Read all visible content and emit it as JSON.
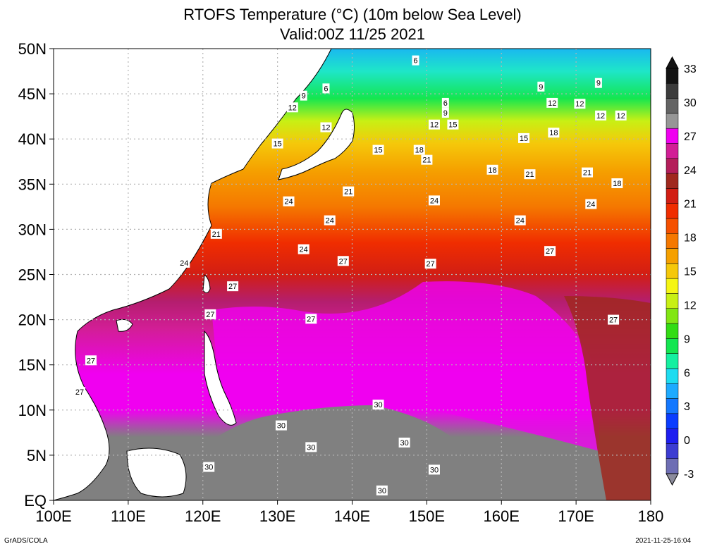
{
  "title": "RTOFS Temperature (°C) (10m below Sea Level)",
  "subtitle": "Valid:00Z 11/25 2021",
  "axes": {
    "lat_labels": [
      "EQ",
      "5N",
      "10N",
      "15N",
      "20N",
      "25N",
      "30N",
      "35N",
      "40N",
      "45N",
      "50N"
    ],
    "lon_labels": [
      "100E",
      "110E",
      "120E",
      "130E",
      "140E",
      "150E",
      "160E",
      "170E",
      "180"
    ],
    "lat_range": [
      0,
      50
    ],
    "lon_range": [
      100,
      180
    ],
    "grid": true
  },
  "colorbar": {
    "labels": [
      "-3",
      "0",
      "3",
      "6",
      "9",
      "12",
      "15",
      "18",
      "21",
      "24",
      "27",
      "30",
      "33"
    ],
    "colors": [
      "#6e6eb4",
      "#3c3cd2",
      "#1e1ef0",
      "#0a3cff",
      "#1478ff",
      "#1eaaff",
      "#1edcf0",
      "#14f0a0",
      "#14e650",
      "#32dc14",
      "#82e614",
      "#c8f014",
      "#f5f514",
      "#f5c80a",
      "#f5a000",
      "#f57800",
      "#f55000",
      "#f02d00",
      "#d21e14",
      "#a0281e",
      "#b41e5a",
      "#d21e96",
      "#f000f0",
      "#969696",
      "#646464",
      "#3c3c3c",
      "#141414"
    ]
  },
  "contour_labels": [
    {
      "text": "6",
      "lon": 148.5,
      "lat": 48.7
    },
    {
      "text": "6",
      "lon": 136.5,
      "lat": 45.6
    },
    {
      "text": "6",
      "lon": 152.5,
      "lat": 44.0
    },
    {
      "text": "9",
      "lon": 133.5,
      "lat": 44.8
    },
    {
      "text": "9",
      "lon": 152.5,
      "lat": 42.9
    },
    {
      "text": "9",
      "lon": 165.3,
      "lat": 45.8
    },
    {
      "text": "9",
      "lon": 173.0,
      "lat": 46.2
    },
    {
      "text": "12",
      "lon": 132.0,
      "lat": 43.5
    },
    {
      "text": "12",
      "lon": 136.5,
      "lat": 41.3
    },
    {
      "text": "12",
      "lon": 151.0,
      "lat": 41.6
    },
    {
      "text": "12",
      "lon": 166.8,
      "lat": 44.0
    },
    {
      "text": "12",
      "lon": 170.5,
      "lat": 43.9
    },
    {
      "text": "12",
      "lon": 173.3,
      "lat": 42.6
    },
    {
      "text": "12",
      "lon": 176.0,
      "lat": 42.6
    },
    {
      "text": "15",
      "lon": 130.0,
      "lat": 39.5
    },
    {
      "text": "15",
      "lon": 143.5,
      "lat": 38.8
    },
    {
      "text": "15",
      "lon": 153.5,
      "lat": 41.6
    },
    {
      "text": "15",
      "lon": 163.0,
      "lat": 40.1
    },
    {
      "text": "18",
      "lon": 149.0,
      "lat": 38.8
    },
    {
      "text": "18",
      "lon": 158.8,
      "lat": 36.6
    },
    {
      "text": "18",
      "lon": 167.0,
      "lat": 40.7
    },
    {
      "text": "18",
      "lon": 175.5,
      "lat": 35.1
    },
    {
      "text": "21",
      "lon": 139.5,
      "lat": 34.2
    },
    {
      "text": "21",
      "lon": 150.0,
      "lat": 37.7
    },
    {
      "text": "21",
      "lon": 163.8,
      "lat": 36.1
    },
    {
      "text": "21",
      "lon": 171.5,
      "lat": 36.3
    },
    {
      "text": "21",
      "lon": 121.8,
      "lat": 29.5
    },
    {
      "text": "24",
      "lon": 131.5,
      "lat": 33.1
    },
    {
      "text": "24",
      "lon": 137.0,
      "lat": 31.0
    },
    {
      "text": "24",
      "lon": 133.5,
      "lat": 27.8
    },
    {
      "text": "24",
      "lon": 151.0,
      "lat": 33.2
    },
    {
      "text": "24",
      "lon": 162.5,
      "lat": 31.0
    },
    {
      "text": "24",
      "lon": 172.0,
      "lat": 32.8
    },
    {
      "text": "24",
      "lon": 117.5,
      "lat": 26.3
    },
    {
      "text": "27",
      "lon": 121.0,
      "lat": 20.6
    },
    {
      "text": "27",
      "lon": 124.0,
      "lat": 23.7
    },
    {
      "text": "27",
      "lon": 138.8,
      "lat": 26.5
    },
    {
      "text": "27",
      "lon": 134.5,
      "lat": 20.1
    },
    {
      "text": "27",
      "lon": 150.5,
      "lat": 26.2
    },
    {
      "text": "27",
      "lon": 166.5,
      "lat": 27.6
    },
    {
      "text": "27",
      "lon": 175.0,
      "lat": 20.0
    },
    {
      "text": "27",
      "lon": 105.0,
      "lat": 15.5
    },
    {
      "text": "27",
      "lon": 103.5,
      "lat": 12.0
    },
    {
      "text": "30",
      "lon": 143.5,
      "lat": 10.6
    },
    {
      "text": "30",
      "lon": 130.5,
      "lat": 8.3
    },
    {
      "text": "30",
      "lon": 134.5,
      "lat": 5.9
    },
    {
      "text": "30",
      "lon": 147.0,
      "lat": 6.4
    },
    {
      "text": "30",
      "lon": 120.8,
      "lat": 3.7
    },
    {
      "text": "30",
      "lon": 151.0,
      "lat": 3.4
    },
    {
      "text": "30",
      "lon": 144.0,
      "lat": 1.1
    }
  ],
  "footer": {
    "left": "GrADS/COLA",
    "right": "2021-11-25-16:04"
  }
}
